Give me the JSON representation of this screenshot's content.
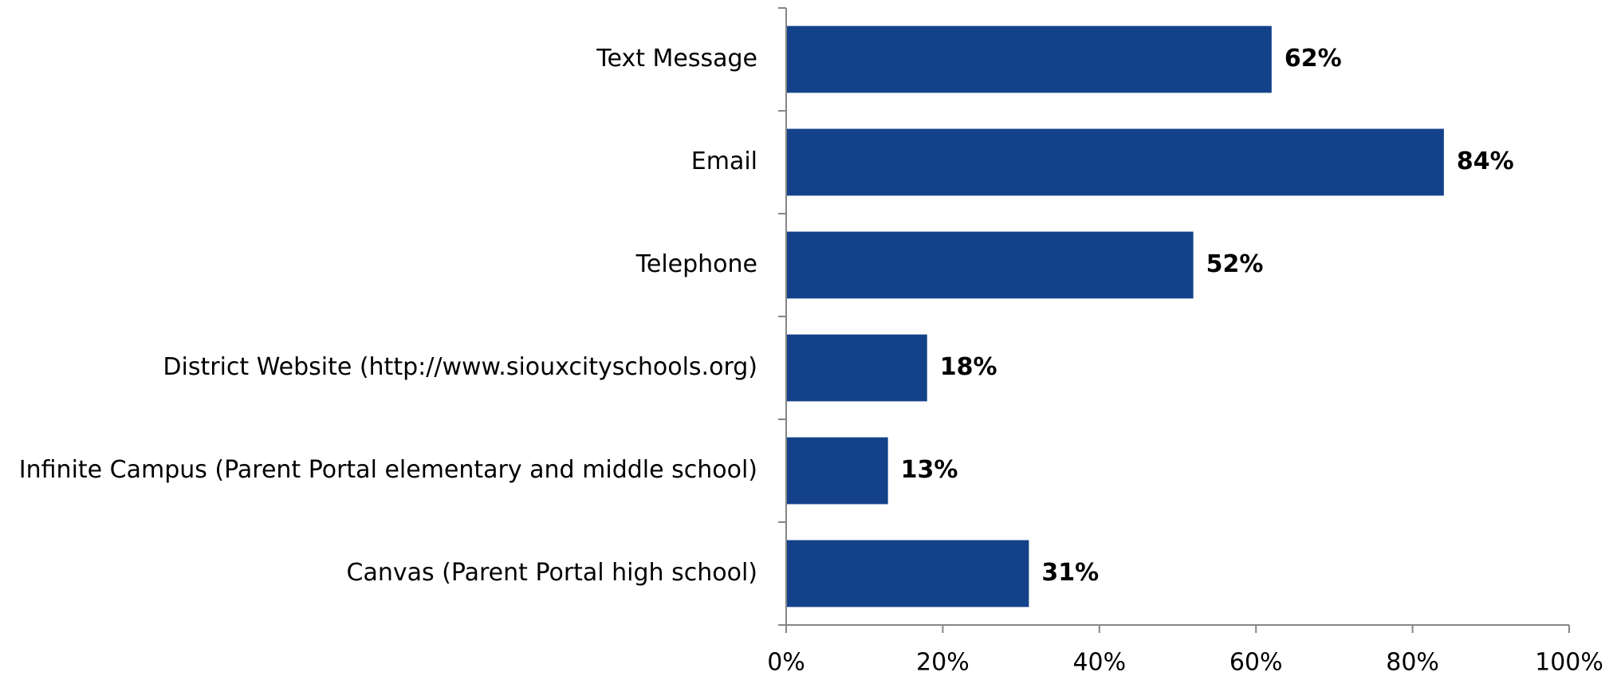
{
  "chart_data": {
    "type": "bar",
    "orientation": "horizontal",
    "categories": [
      "Text Message",
      "Email",
      "Telephone",
      "District Website (http://www.siouxcityschools.org)",
      "Infinite Campus (Parent Portal elementary and middle school)",
      "Canvas (Parent Portal high school)"
    ],
    "values": [
      62,
      84,
      52,
      18,
      13,
      31
    ],
    "value_labels": [
      "62%",
      "84%",
      "52%",
      "18%",
      "13%",
      "31%"
    ],
    "title": "",
    "xlabel": "",
    "ylabel": "",
    "xlim": [
      0,
      100
    ],
    "xticks": [
      0,
      20,
      40,
      60,
      80,
      100
    ],
    "xtick_labels": [
      "0%",
      "20%",
      "40%",
      "60%",
      "80%",
      "100%"
    ],
    "grid": false,
    "legend": "none",
    "bar_color": "#13428A"
  }
}
